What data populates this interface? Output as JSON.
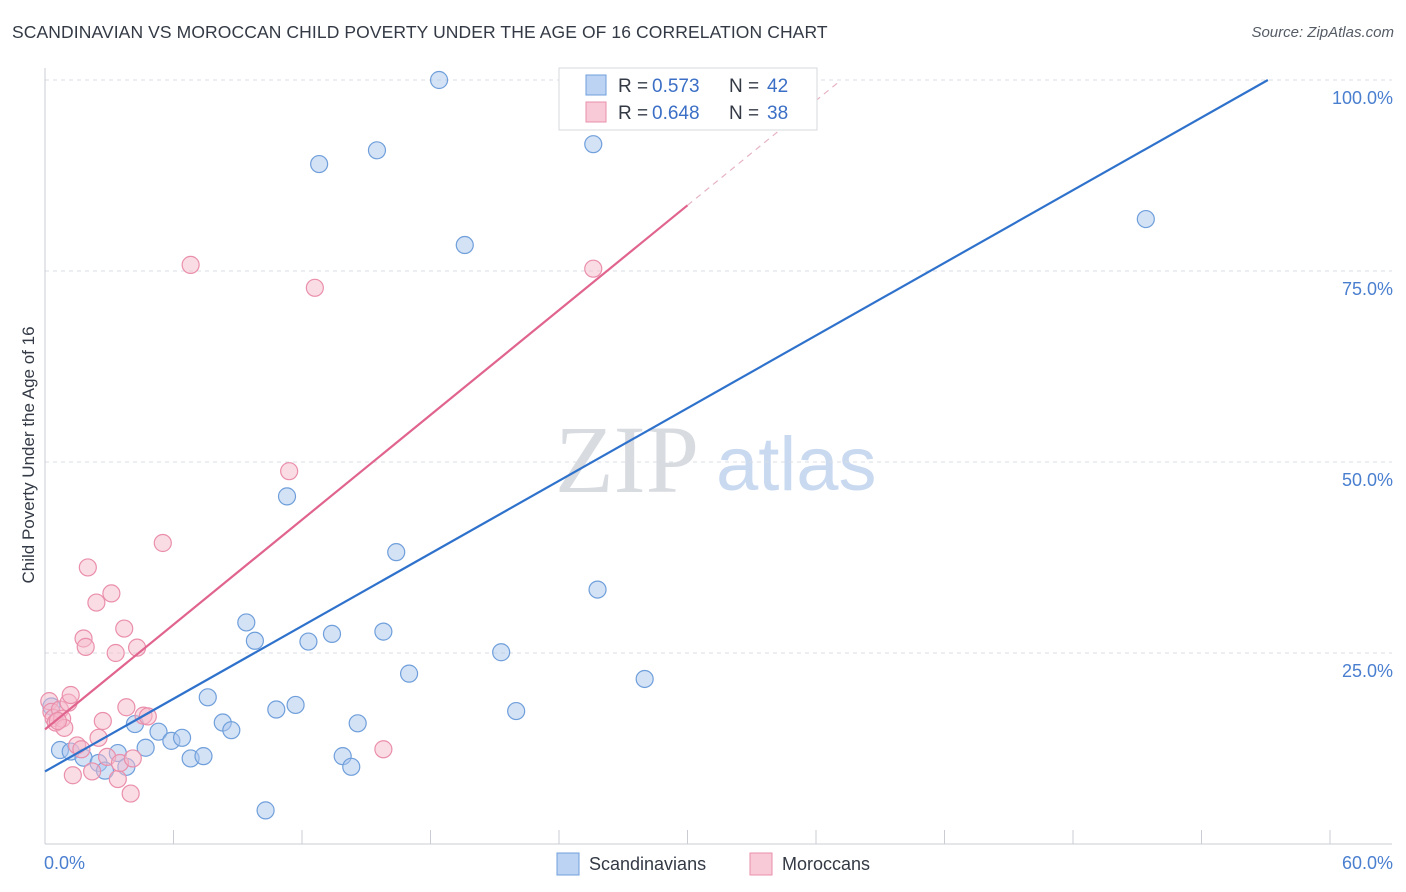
{
  "title": "SCANDINAVIAN VS MOROCCAN CHILD POVERTY UNDER THE AGE OF 16 CORRELATION CHART",
  "source": "Source: ZipAtlas.com",
  "watermark": {
    "zip": "ZIP",
    "atlas": "atlas"
  },
  "colors": {
    "blue_fill": "#a9c6ee",
    "blue_stroke": "#6f9fdb",
    "blue_line": "#2f72cc",
    "pink_fill": "#f6b9cb",
    "pink_stroke": "#ea8fab",
    "pink_line": "#e0648e",
    "grid": "#d9dde3",
    "tick_text": "#4a7fd0"
  },
  "chart_data": {
    "type": "scatter",
    "title": "SCANDINAVIAN VS MOROCCAN CHILD POVERTY UNDER THE AGE OF 16 CORRELATION CHART",
    "xlabel": "",
    "ylabel": "Child Poverty Under the Age of 16",
    "xlim": [
      0,
      60
    ],
    "ylim": [
      0,
      100
    ],
    "x_tick_labels": [
      "0.0%",
      "60.0%"
    ],
    "y_tick_labels": [
      "100.0%",
      "75.0%",
      "50.0%",
      "25.0%"
    ],
    "y_ticks": [
      100,
      75,
      50,
      25
    ],
    "legend": [
      {
        "name": "Scandinavians",
        "r_label": "R =",
        "r": "0.573",
        "n_label": "N =",
        "n": "42"
      },
      {
        "name": "Moroccans",
        "r_label": "R =",
        "r": "0.648",
        "n_label": "N =",
        "n": "38"
      }
    ],
    "series": [
      {
        "name": "Scandinavians",
        "points": [
          [
            0.7,
            12.3
          ],
          [
            1.2,
            12.1
          ],
          [
            1.8,
            11.3
          ],
          [
            2.5,
            10.6
          ],
          [
            2.8,
            9.6
          ],
          [
            3.4,
            11.9
          ],
          [
            3.8,
            10.1
          ],
          [
            4.2,
            15.7
          ],
          [
            4.7,
            12.6
          ],
          [
            5.3,
            14.7
          ],
          [
            5.9,
            13.5
          ],
          [
            6.4,
            13.9
          ],
          [
            6.8,
            11.2
          ],
          [
            7.4,
            11.5
          ],
          [
            7.6,
            19.2
          ],
          [
            8.3,
            15.9
          ],
          [
            8.7,
            14.9
          ],
          [
            9.4,
            29.0
          ],
          [
            9.8,
            26.6
          ],
          [
            10.3,
            4.4
          ],
          [
            10.8,
            17.6
          ],
          [
            11.3,
            45.5
          ],
          [
            11.7,
            18.2
          ],
          [
            12.3,
            26.5
          ],
          [
            12.8,
            89.0
          ],
          [
            13.4,
            27.5
          ],
          [
            13.9,
            11.5
          ],
          [
            14.3,
            10.1
          ],
          [
            14.6,
            15.8
          ],
          [
            15.5,
            90.8
          ],
          [
            15.8,
            27.8
          ],
          [
            16.4,
            38.2
          ],
          [
            17.0,
            22.3
          ],
          [
            18.4,
            100.0
          ],
          [
            19.6,
            78.4
          ],
          [
            21.3,
            25.1
          ],
          [
            22.0,
            17.4
          ],
          [
            25.6,
            91.6
          ],
          [
            25.8,
            33.3
          ],
          [
            28.0,
            21.6
          ],
          [
            51.4,
            81.8
          ],
          [
            0.3,
            18.0
          ]
        ]
      },
      {
        "name": "Moroccans",
        "points": [
          [
            0.2,
            18.7
          ],
          [
            0.3,
            17.3
          ],
          [
            0.4,
            16.5
          ],
          [
            0.5,
            15.9
          ],
          [
            0.7,
            17.6
          ],
          [
            0.8,
            16.4
          ],
          [
            0.9,
            15.2
          ],
          [
            1.1,
            18.5
          ],
          [
            1.2,
            19.5
          ],
          [
            1.3,
            9.0
          ],
          [
            1.5,
            12.9
          ],
          [
            1.7,
            12.4
          ],
          [
            1.8,
            26.9
          ],
          [
            1.9,
            25.8
          ],
          [
            2.0,
            36.2
          ],
          [
            2.2,
            9.5
          ],
          [
            2.4,
            31.6
          ],
          [
            2.5,
            13.9
          ],
          [
            2.7,
            16.1
          ],
          [
            2.9,
            11.4
          ],
          [
            3.1,
            32.8
          ],
          [
            3.3,
            25.0
          ],
          [
            3.4,
            8.5
          ],
          [
            3.5,
            10.6
          ],
          [
            3.7,
            28.2
          ],
          [
            3.8,
            17.9
          ],
          [
            4.0,
            6.6
          ],
          [
            4.1,
            11.2
          ],
          [
            4.3,
            25.7
          ],
          [
            4.6,
            16.8
          ],
          [
            4.8,
            16.7
          ],
          [
            5.5,
            39.4
          ],
          [
            6.8,
            75.8
          ],
          [
            11.4,
            48.8
          ],
          [
            12.6,
            72.8
          ],
          [
            15.8,
            12.4
          ],
          [
            25.6,
            75.3
          ],
          [
            0.6,
            16.1
          ]
        ]
      }
    ],
    "trend_lines": [
      {
        "name": "Scandinavians",
        "x": [
          0,
          57.1
        ],
        "y": [
          9.5,
          100.0
        ]
      },
      {
        "name": "Moroccans",
        "x": [
          0,
          30.0
        ],
        "y": [
          15.0,
          83.6
        ],
        "dashed_extension_x": [
          30.0,
          37.0
        ],
        "dashed_extension_y": [
          83.6,
          99.6
        ]
      }
    ]
  },
  "bottom_legend": [
    "Scandinavians",
    "Moroccans"
  ]
}
